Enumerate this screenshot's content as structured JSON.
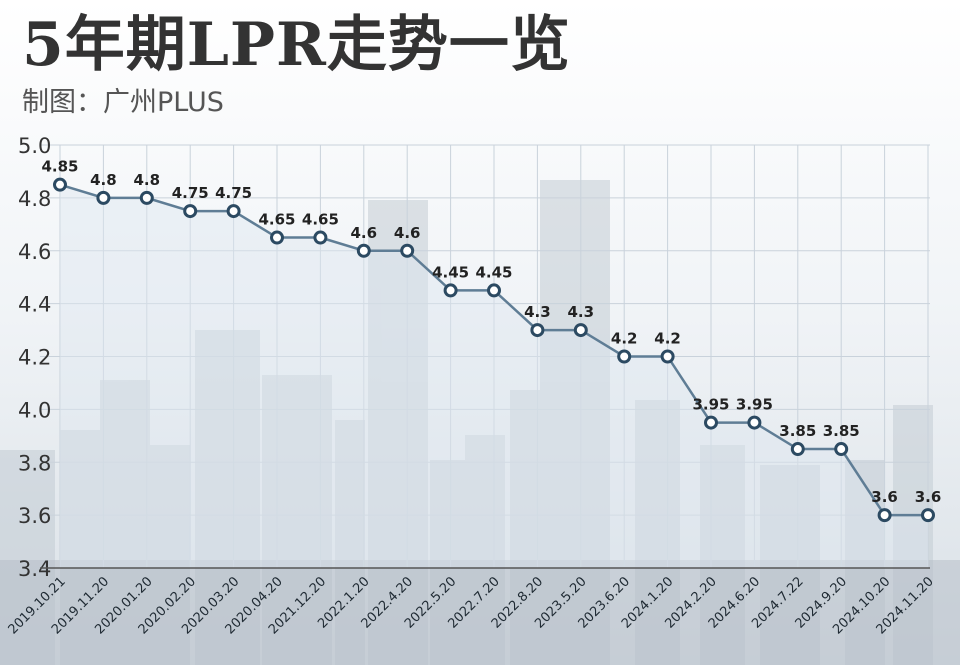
{
  "header": {
    "title": "5年期LPR走势一览",
    "subtitle": "制图：广州PLUS"
  },
  "colors": {
    "line": "#5f7d95",
    "marker_fill": "#ffffff",
    "marker_stroke": "#2c4a62",
    "label": "#222222",
    "area_fill": "#dde6ef",
    "grid": "#c9d2db"
  },
  "chart_data": {
    "type": "line",
    "title": "5年期LPR走势一览",
    "xlabel": "",
    "ylabel": "",
    "ylim": [
      3.4,
      5.0
    ],
    "yticks": [
      "3.4",
      "3.6",
      "3.8",
      "4.0",
      "4.2",
      "4.4",
      "4.6",
      "4.8",
      "5.0"
    ],
    "grid": true,
    "categories": [
      "2019.10.21",
      "2019.11.20",
      "2020.01.20",
      "2020.02.20",
      "2020.03.20",
      "2020.04.20",
      "2021.12.20",
      "2022.1.20",
      "2022.4.20",
      "2022.5.20",
      "2022.7.20",
      "2022.8.20",
      "2023.5.20",
      "2023.6.20",
      "2024.1.20",
      "2024.2.20",
      "2024.6.20",
      "2024.7.22",
      "2024.9.20",
      "2024.10.20",
      "2024.11.20"
    ],
    "values": [
      4.85,
      4.8,
      4.8,
      4.75,
      4.75,
      4.65,
      4.65,
      4.6,
      4.6,
      4.45,
      4.45,
      4.3,
      4.3,
      4.2,
      4.2,
      3.95,
      3.95,
      3.85,
      3.85,
      3.6,
      3.6
    ],
    "data_labels": [
      "4.85",
      "4.8",
      "4.8",
      "4.75",
      "4.75",
      "4.65",
      "4.65",
      "4.6",
      "4.6",
      "4.45",
      "4.45",
      "4.3",
      "4.3",
      "4.2",
      "4.2",
      "3.95",
      "3.95",
      "3.85",
      "3.85",
      "3.6",
      "3.6"
    ]
  }
}
